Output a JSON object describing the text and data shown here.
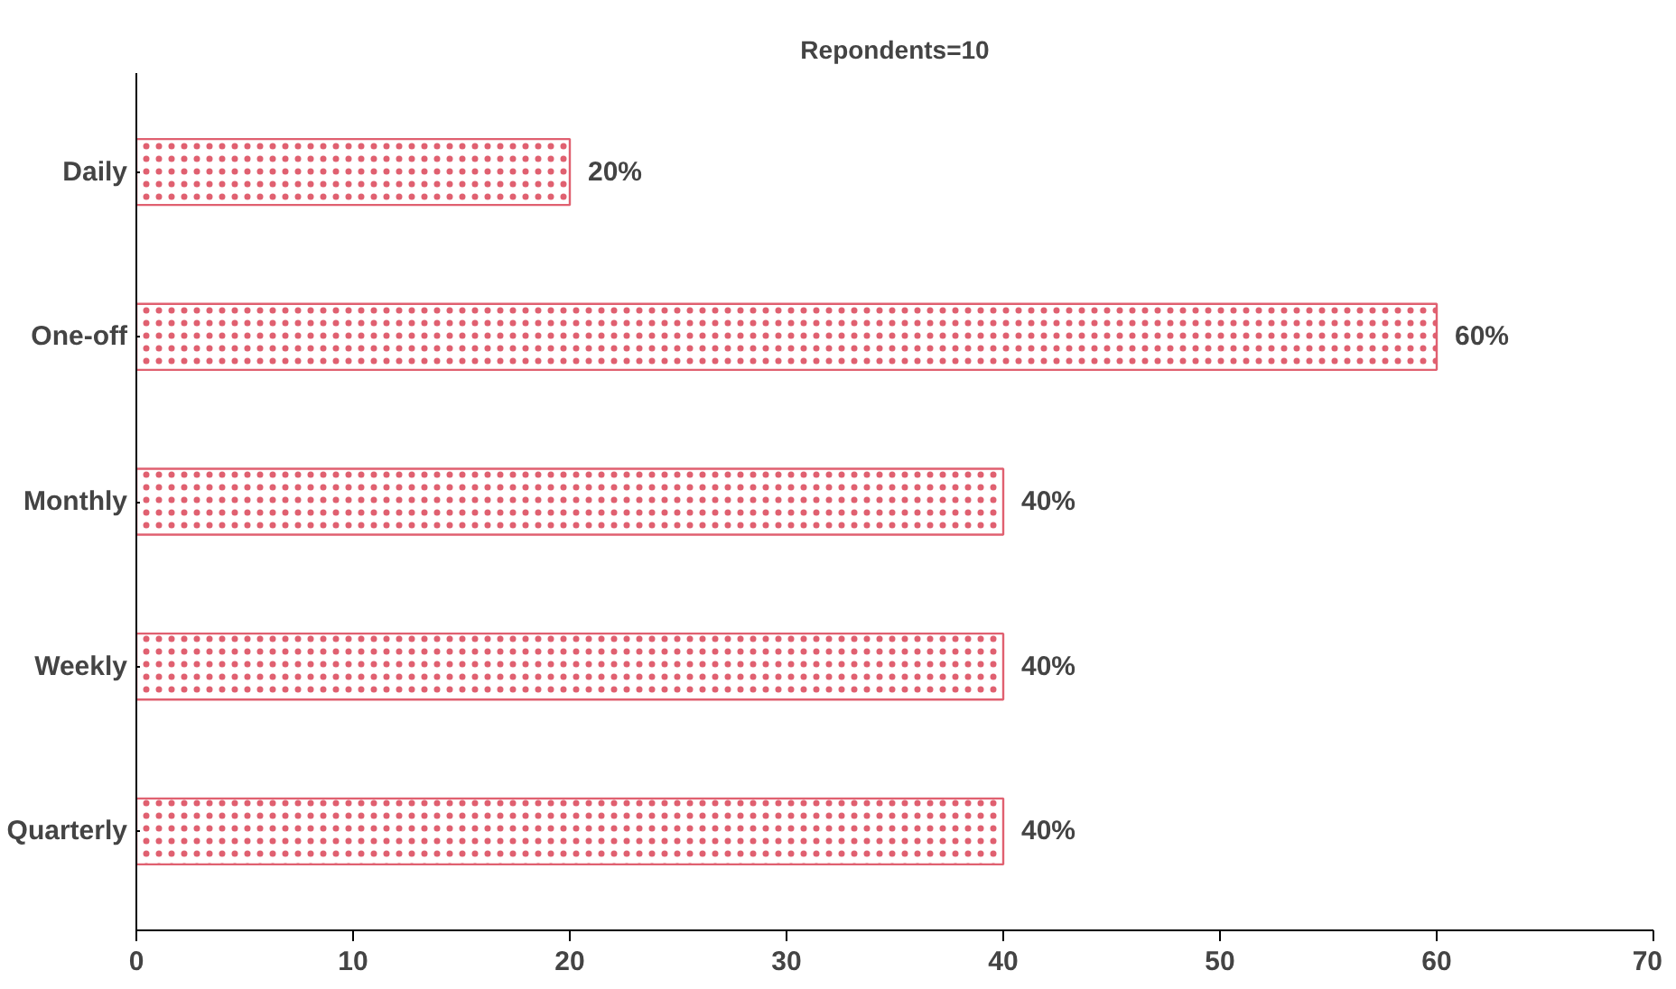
{
  "chart_data": {
    "type": "bar",
    "orientation": "horizontal",
    "title": "Repondents=10",
    "categories": [
      "Daily",
      "One-off",
      "Monthly",
      "Weekly",
      "Quarterly"
    ],
    "values": [
      20,
      60,
      40,
      40,
      40
    ],
    "value_labels": [
      "20%",
      "60%",
      "40%",
      "40%",
      "40%"
    ],
    "color": "#e06070",
    "xlim": [
      0,
      70
    ],
    "xticks": [
      0,
      10,
      20,
      30,
      40,
      50,
      60,
      70
    ],
    "grid": false
  }
}
